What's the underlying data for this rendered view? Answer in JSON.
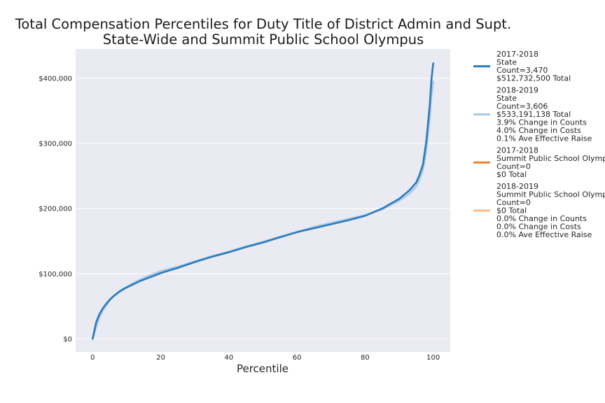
{
  "chart_data": {
    "type": "line",
    "title": "Total Compensation Percentiles for Duty Title of District Admin and Supt.",
    "subtitle": "State-Wide and Summit Public School Olympus",
    "xlabel": "Percentile",
    "ylabel": "",
    "xlim": [
      -5,
      105
    ],
    "ylim": [
      -20000,
      445000
    ],
    "x_ticks": [
      0,
      20,
      40,
      60,
      80,
      100
    ],
    "y_ticks": [
      0,
      100000,
      200000,
      300000,
      400000
    ],
    "x_tick_labels": [
      "0",
      "20",
      "40",
      "60",
      "80",
      "100"
    ],
    "y_tick_labels": [
      "$0",
      "$100,000",
      "$200,000",
      "$300,000",
      "$400,000"
    ],
    "grid": true,
    "legend_position": "outside-right",
    "background": "#eaeaf2",
    "series": [
      {
        "name": "2017-2018",
        "legend_lines": [
          "2017-2018",
          "State",
          "Count=3,470",
          "$512,732,500 Total"
        ],
        "color": "#2b7bba",
        "x": [
          0,
          1,
          2,
          3,
          4,
          5,
          6,
          8,
          10,
          12,
          14,
          16,
          18,
          20,
          25,
          30,
          35,
          40,
          45,
          50,
          55,
          60,
          65,
          70,
          75,
          80,
          85,
          90,
          93,
          95,
          96,
          97,
          98,
          99,
          99.5,
          100
        ],
        "y": [
          0,
          25000,
          38000,
          47000,
          54000,
          60000,
          65000,
          73000,
          79000,
          84000,
          89000,
          93000,
          97000,
          101000,
          109000,
          118000,
          126000,
          133000,
          141000,
          148000,
          156000,
          164000,
          170000,
          176000,
          182000,
          189000,
          200000,
          215000,
          228000,
          240000,
          252000,
          268000,
          305000,
          360000,
          400000,
          423000
        ]
      },
      {
        "name": "2018-2019",
        "legend_lines": [
          "2018-2019",
          "State",
          "Count=3,606",
          "$533,191,138 Total",
          "3.9% Change in Counts",
          "4.0% Change in Costs",
          "0.1% Ave Effective Raise"
        ],
        "color": "#a6c8ea",
        "x": [
          0,
          1,
          2,
          3,
          4,
          5,
          6,
          8,
          10,
          12,
          14,
          16,
          18,
          20,
          25,
          30,
          35,
          40,
          45,
          50,
          55,
          60,
          65,
          70,
          75,
          80,
          85,
          90,
          93,
          95,
          96,
          97,
          98,
          99,
          99.5,
          100
        ],
        "y": [
          0,
          18000,
          33000,
          44000,
          52000,
          59000,
          65000,
          74000,
          80000,
          86000,
          91000,
          96000,
          100000,
          104000,
          111000,
          119000,
          127000,
          134000,
          142000,
          149000,
          157000,
          164000,
          172000,
          178000,
          184000,
          190000,
          199000,
          212000,
          223000,
          234000,
          245000,
          260000,
          290000,
          340000,
          375000,
          395000
        ]
      },
      {
        "name": "2017-2018",
        "legend_lines": [
          "2017-2018",
          "Summit Public School Olympus",
          "Count=0",
          "$0 Total"
        ],
        "color": "#f0822c",
        "x": [],
        "y": []
      },
      {
        "name": "2018-2019",
        "legend_lines": [
          "2018-2019",
          "Summit Public School Olympus",
          "Count=0",
          "$0 Total",
          "0.0% Change in Counts",
          "0.0% Change in Costs",
          "0.0% Ave Effective Raise"
        ],
        "color": "#f6be87",
        "x": [],
        "y": []
      }
    ]
  }
}
